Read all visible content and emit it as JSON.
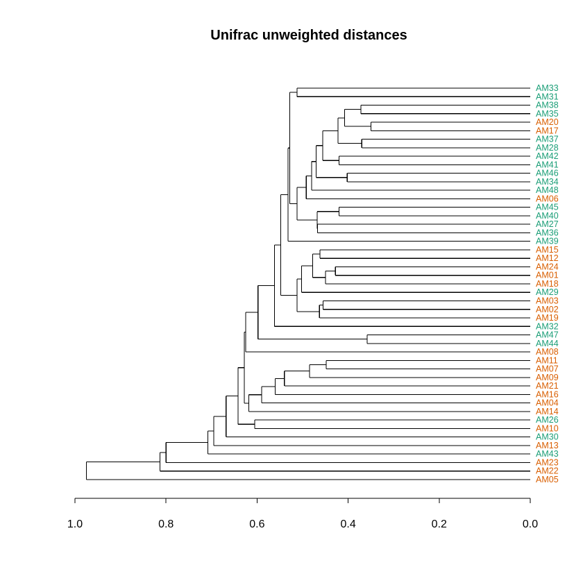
{
  "chart_data": {
    "type": "dendrogram",
    "title": "Unifrac unweighted distances",
    "xlim": [
      1.0,
      0.0
    ],
    "xticks": [
      1.0,
      0.8,
      0.6,
      0.4,
      0.2,
      0.0
    ],
    "xtick_labels": [
      "1.0",
      "0.8",
      "0.6",
      "0.4",
      "0.2",
      "0.0"
    ],
    "group_colors": {
      "green": "#1b9e77",
      "orange": "#d95f02"
    },
    "leaves": [
      {
        "label": "AM33",
        "group": "green"
      },
      {
        "label": "AM31",
        "group": "green"
      },
      {
        "label": "AM38",
        "group": "green"
      },
      {
        "label": "AM35",
        "group": "green"
      },
      {
        "label": "AM20",
        "group": "orange"
      },
      {
        "label": "AM17",
        "group": "orange"
      },
      {
        "label": "AM37",
        "group": "green"
      },
      {
        "label": "AM28",
        "group": "green"
      },
      {
        "label": "AM42",
        "group": "green"
      },
      {
        "label": "AM41",
        "group": "green"
      },
      {
        "label": "AM46",
        "group": "green"
      },
      {
        "label": "AM34",
        "group": "green"
      },
      {
        "label": "AM48",
        "group": "green"
      },
      {
        "label": "AM06",
        "group": "orange"
      },
      {
        "label": "AM45",
        "group": "green"
      },
      {
        "label": "AM40",
        "group": "green"
      },
      {
        "label": "AM27",
        "group": "green"
      },
      {
        "label": "AM36",
        "group": "green"
      },
      {
        "label": "AM39",
        "group": "green"
      },
      {
        "label": "AM15",
        "group": "orange"
      },
      {
        "label": "AM12",
        "group": "orange"
      },
      {
        "label": "AM24",
        "group": "orange"
      },
      {
        "label": "AM01",
        "group": "orange"
      },
      {
        "label": "AM18",
        "group": "orange"
      },
      {
        "label": "AM29",
        "group": "green"
      },
      {
        "label": "AM03",
        "group": "orange"
      },
      {
        "label": "AM02",
        "group": "orange"
      },
      {
        "label": "AM19",
        "group": "orange"
      },
      {
        "label": "AM32",
        "group": "green"
      },
      {
        "label": "AM47",
        "group": "green"
      },
      {
        "label": "AM44",
        "group": "green"
      },
      {
        "label": "AM08",
        "group": "orange"
      },
      {
        "label": "AM11",
        "group": "orange"
      },
      {
        "label": "AM07",
        "group": "orange"
      },
      {
        "label": "AM09",
        "group": "orange"
      },
      {
        "label": "AM21",
        "group": "orange"
      },
      {
        "label": "AM16",
        "group": "orange"
      },
      {
        "label": "AM04",
        "group": "orange"
      },
      {
        "label": "AM14",
        "group": "orange"
      },
      {
        "label": "AM26",
        "group": "green"
      },
      {
        "label": "AM10",
        "group": "orange"
      },
      {
        "label": "AM30",
        "group": "green"
      },
      {
        "label": "AM13",
        "group": "orange"
      },
      {
        "label": "AM43",
        "group": "green"
      },
      {
        "label": "AM23",
        "group": "orange"
      },
      {
        "label": "AM22",
        "group": "orange"
      },
      {
        "label": "AM05",
        "group": "orange"
      }
    ],
    "merges": [
      {
        "id": "n1",
        "height": 0.512,
        "children": [
          "AM33",
          "AM31"
        ]
      },
      {
        "id": "n2",
        "height": 0.372,
        "children": [
          "AM38",
          "AM35"
        ]
      },
      {
        "id": "n3",
        "height": 0.35,
        "children": [
          "AM20",
          "AM17"
        ]
      },
      {
        "id": "n4",
        "height": 0.408,
        "children": [
          "n2",
          "n3"
        ]
      },
      {
        "id": "n5",
        "height": 0.37,
        "children": [
          "AM37",
          "AM28"
        ]
      },
      {
        "id": "n6",
        "height": 0.422,
        "children": [
          "n4",
          "n5"
        ]
      },
      {
        "id": "n7",
        "height": 0.42,
        "children": [
          "AM42",
          "AM41"
        ]
      },
      {
        "id": "n8",
        "height": 0.456,
        "children": [
          "n6",
          "n7"
        ]
      },
      {
        "id": "n9",
        "height": 0.402,
        "children": [
          "AM46",
          "AM34"
        ]
      },
      {
        "id": "n10",
        "height": 0.47,
        "children": [
          "n8",
          "n9"
        ]
      },
      {
        "id": "n11",
        "height": 0.48,
        "children": [
          "n10",
          "AM48"
        ]
      },
      {
        "id": "n12",
        "height": 0.492,
        "children": [
          "n11",
          "AM06"
        ]
      },
      {
        "id": "n13",
        "height": 0.42,
        "children": [
          "AM45",
          "AM40"
        ]
      },
      {
        "id": "n14",
        "height": 0.467,
        "children": [
          "AM27",
          "AM36"
        ]
      },
      {
        "id": "n15",
        "height": 0.468,
        "children": [
          "n13",
          "n14"
        ]
      },
      {
        "id": "n16",
        "height": 0.512,
        "children": [
          "n12",
          "n15"
        ]
      },
      {
        "id": "n17",
        "height": 0.528,
        "children": [
          "n1",
          "n16"
        ]
      },
      {
        "id": "n18",
        "height": 0.532,
        "children": [
          "n17",
          "AM39"
        ]
      },
      {
        "id": "n19",
        "height": 0.462,
        "children": [
          "AM15",
          "AM12"
        ]
      },
      {
        "id": "n20",
        "height": 0.428,
        "children": [
          "AM24",
          "AM01"
        ]
      },
      {
        "id": "n21",
        "height": 0.45,
        "children": [
          "n20",
          "AM18"
        ]
      },
      {
        "id": "n22",
        "height": 0.478,
        "children": [
          "n19",
          "n21"
        ]
      },
      {
        "id": "n23",
        "height": 0.502,
        "children": [
          "n22",
          "AM29"
        ]
      },
      {
        "id": "n24",
        "height": 0.455,
        "children": [
          "AM03",
          "AM02"
        ]
      },
      {
        "id": "n25",
        "height": 0.463,
        "children": [
          "n24",
          "AM19"
        ]
      },
      {
        "id": "n26",
        "height": 0.512,
        "children": [
          "n23",
          "n25"
        ]
      },
      {
        "id": "n27",
        "height": 0.548,
        "children": [
          "n18",
          "n26"
        ]
      },
      {
        "id": "n28",
        "height": 0.562,
        "children": [
          "n27",
          "AM32"
        ]
      },
      {
        "id": "n29",
        "height": 0.358,
        "children": [
          "AM47",
          "AM44"
        ]
      },
      {
        "id": "n30",
        "height": 0.598,
        "children": [
          "n28",
          "n29"
        ]
      },
      {
        "id": "n31",
        "height": 0.625,
        "children": [
          "n30",
          "AM08"
        ]
      },
      {
        "id": "n32",
        "height": 0.448,
        "children": [
          "AM11",
          "AM07"
        ]
      },
      {
        "id": "n33",
        "height": 0.485,
        "children": [
          "n32",
          "AM09"
        ]
      },
      {
        "id": "n34",
        "height": 0.54,
        "children": [
          "n33",
          "AM21"
        ]
      },
      {
        "id": "n35",
        "height": 0.56,
        "children": [
          "n34",
          "AM16"
        ]
      },
      {
        "id": "n36",
        "height": 0.59,
        "children": [
          "n35",
          "AM04"
        ]
      },
      {
        "id": "n37",
        "height": 0.618,
        "children": [
          "n36",
          "AM14"
        ]
      },
      {
        "id": "n38",
        "height": 0.628,
        "children": [
          "n31",
          "n37"
        ]
      },
      {
        "id": "n39",
        "height": 0.605,
        "children": [
          "AM26",
          "AM10"
        ]
      },
      {
        "id": "n40",
        "height": 0.642,
        "children": [
          "n38",
          "n39"
        ]
      },
      {
        "id": "n41",
        "height": 0.668,
        "children": [
          "n40",
          "AM30"
        ]
      },
      {
        "id": "n42",
        "height": 0.695,
        "children": [
          "n41",
          "AM13"
        ]
      },
      {
        "id": "n43",
        "height": 0.708,
        "children": [
          "n42",
          "AM43"
        ]
      },
      {
        "id": "n44",
        "height": 0.8,
        "children": [
          "n43",
          "AM23"
        ]
      },
      {
        "id": "n45",
        "height": 0.813,
        "children": [
          "n44",
          "AM22"
        ]
      },
      {
        "id": "n46",
        "height": 0.975,
        "children": [
          "n45",
          "AM05"
        ]
      }
    ]
  }
}
